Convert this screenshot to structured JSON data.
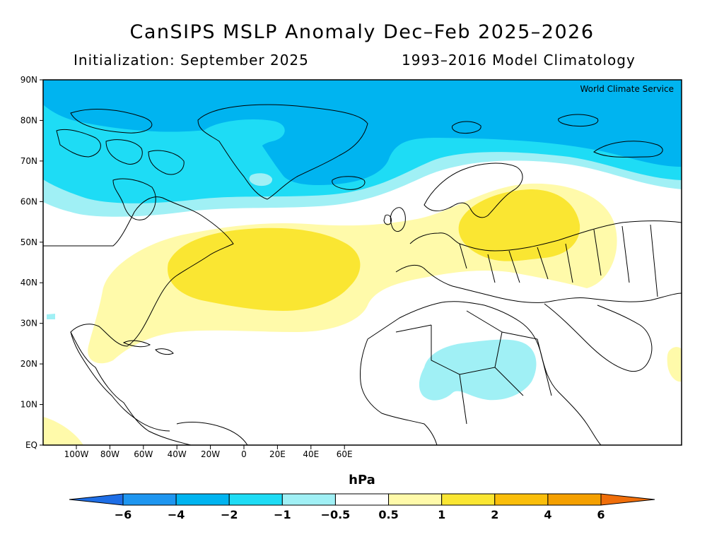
{
  "header": {
    "title": "CanSIPS MSLP Anomaly Dec–Feb 2025–2026",
    "init": "Initialization: September 2025",
    "climatology": "1993–2016 Model Climatology"
  },
  "map": {
    "credit": "World Climate Service",
    "lat_labels": [
      "90N",
      "80N",
      "70N",
      "60N",
      "50N",
      "40N",
      "30N",
      "20N",
      "10N",
      "EQ"
    ],
    "lon_labels": [
      "100W",
      "80W",
      "60W",
      "40W",
      "20W",
      "0",
      "20E",
      "40E",
      "60E"
    ],
    "colors": {
      "neg_4_2": "#00b4f0",
      "neg_2_1": "#1edcf5",
      "neg_1_05": "#a0f0f5",
      "pos_05_1": "#fffaaa",
      "pos_1_2": "#fae632",
      "land_line": "#000000"
    }
  },
  "colorbar": {
    "unit": "hPa",
    "labels": [
      "−6",
      "−4",
      "−2",
      "−1",
      "−0.5",
      "0.5",
      "1",
      "2",
      "4",
      "6"
    ],
    "colors": [
      "#1e6ee6",
      "#1e96f0",
      "#00b4f0",
      "#1edcf5",
      "#a0f0f5",
      "#ffffff",
      "#fffaaa",
      "#fae632",
      "#fabe0a",
      "#f5a000",
      "#f06e0a"
    ]
  }
}
